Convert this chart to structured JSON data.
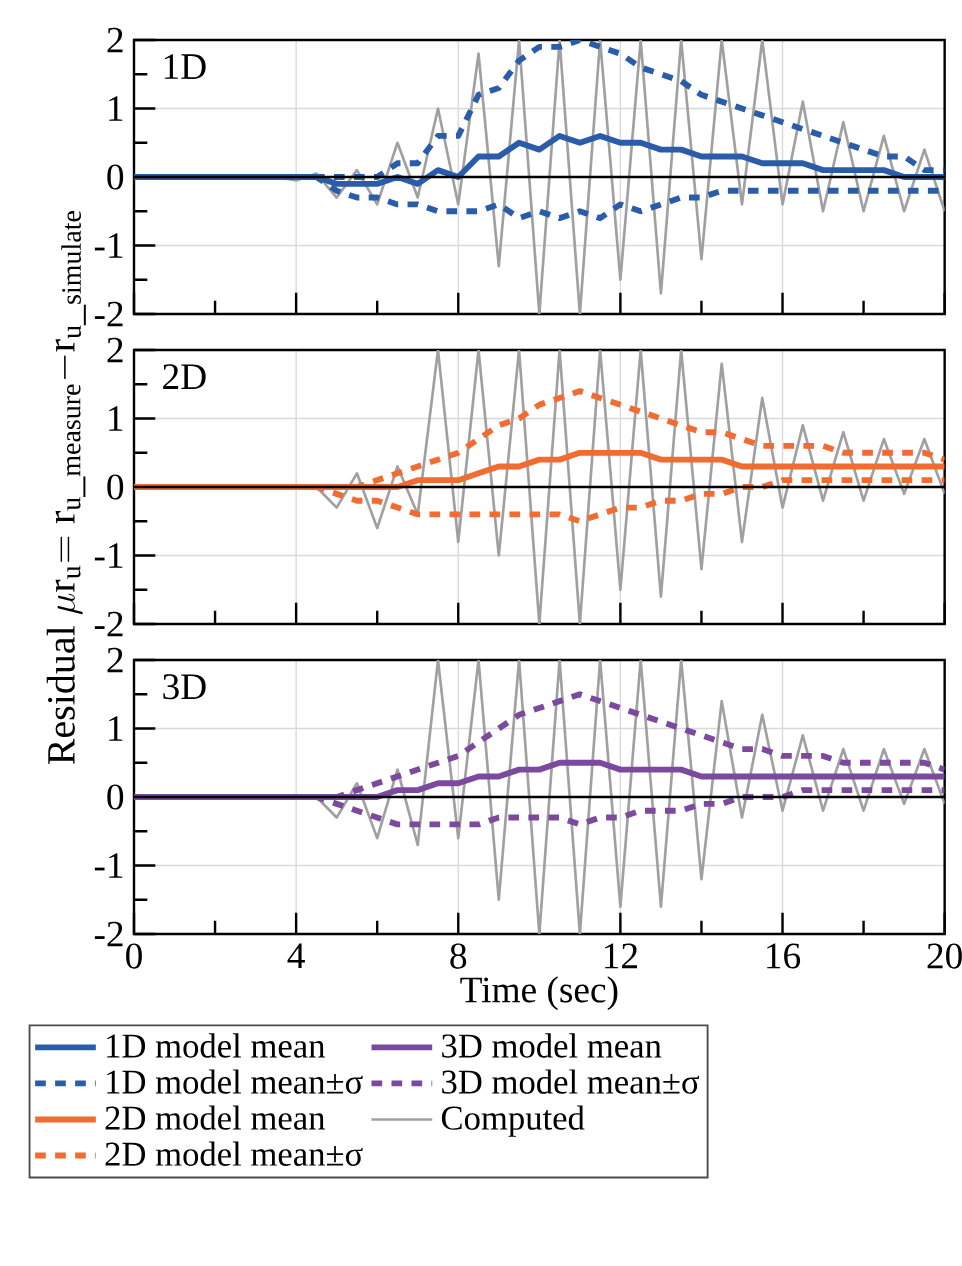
{
  "chart_data": [
    {
      "type": "line",
      "x": [
        0,
        0.5,
        1,
        1.5,
        2,
        2.5,
        3,
        3.5,
        4,
        4.5,
        5,
        5.5,
        6,
        6.5,
        7,
        7.5,
        8,
        8.5,
        9,
        9.5,
        10,
        10.5,
        11,
        11.5,
        12,
        12.5,
        13,
        13.5,
        14,
        14.5,
        15,
        15.5,
        16,
        16.5,
        17,
        17.5,
        18,
        18.5,
        19,
        19.5,
        20
      ],
      "xlim": [
        0,
        20
      ],
      "xticks": [
        0,
        {
          "value": 2,
          "label": null
        },
        4,
        {
          "value": 6,
          "label": null
        },
        8,
        {
          "value": 10,
          "label": null
        },
        12,
        {
          "value": 14,
          "label": null
        },
        16,
        {
          "value": 18,
          "label": null
        },
        20
      ],
      "ylim": [
        -2,
        2
      ],
      "yticks": [
        -2,
        {
          "value": -1.5,
          "label": null
        },
        -1,
        {
          "value": -0.5,
          "label": null
        },
        0,
        {
          "value": 0.5,
          "label": null
        },
        1,
        {
          "value": 1.5,
          "label": null
        },
        2
      ],
      "grid": true,
      "tick_labels": "y",
      "annotations": [
        "1D"
      ],
      "ref_lines": [
        {
          "axis": "y",
          "value": 0,
          "color": "#000000"
        }
      ],
      "series": [
        {
          "color": "#a0a0a0",
          "values": [
            0,
            0,
            0,
            0,
            0,
            0,
            0,
            0,
            -0.05,
            0.05,
            -0.3,
            0.1,
            -0.4,
            0.5,
            -0.3,
            1.0,
            -0.4,
            1.8,
            -1.3,
            2,
            -2,
            2,
            -2,
            2,
            -1.5,
            2,
            -1.7,
            2,
            -1.2,
            2,
            -0.4,
            2,
            -0.4,
            1.1,
            -0.5,
            0.8,
            -0.5,
            0.6,
            -0.5,
            0.4,
            -0.5
          ]
        },
        {
          "name": "1D model mean",
          "color": "#2a5caa",
          "line_style": "solid",
          "values": [
            0,
            0,
            0,
            0,
            0,
            0,
            0,
            0,
            0,
            0,
            -0.1,
            -0.1,
            -0.1,
            0,
            -0.1,
            0.1,
            0,
            0.3,
            0.3,
            0.5,
            0.4,
            0.6,
            0.5,
            0.6,
            0.5,
            0.5,
            0.4,
            0.4,
            0.3,
            0.3,
            0.3,
            0.2,
            0.2,
            0.2,
            0.1,
            0.1,
            0.1,
            0.1,
            0,
            0,
            0
          ]
        },
        {
          "name": "1D model mean±σ",
          "color": "#2a5caa",
          "line_style": "dashed",
          "values": [
            0,
            0,
            0,
            0,
            0,
            0,
            0,
            0,
            0,
            0,
            0,
            0,
            0,
            0.2,
            0.2,
            0.6,
            0.6,
            1.2,
            1.3,
            1.7,
            1.9,
            1.9,
            2,
            1.9,
            1.8,
            1.6,
            1.5,
            1.4,
            1.2,
            1.1,
            1.0,
            0.9,
            0.8,
            0.7,
            0.6,
            0.5,
            0.4,
            0.3,
            0.3,
            0.1,
            0.1
          ]
        },
        {
          "color": "#2a5caa",
          "line_style": "dashed",
          "values": [
            0,
            0,
            0,
            0,
            0,
            0,
            0,
            0,
            0,
            0,
            -0.2,
            -0.3,
            -0.3,
            -0.4,
            -0.4,
            -0.5,
            -0.5,
            -0.5,
            -0.4,
            -0.6,
            -0.5,
            -0.6,
            -0.5,
            -0.6,
            -0.4,
            -0.5,
            -0.4,
            -0.3,
            -0.3,
            -0.2,
            -0.2,
            -0.2,
            -0.2,
            -0.2,
            -0.2,
            -0.2,
            -0.2,
            -0.2,
            -0.2,
            -0.2,
            -0.2
          ]
        }
      ]
    },
    {
      "type": "line",
      "x": [
        0,
        0.5,
        1,
        1.5,
        2,
        2.5,
        3,
        3.5,
        4,
        4.5,
        5,
        5.5,
        6,
        6.5,
        7,
        7.5,
        8,
        8.5,
        9,
        9.5,
        10,
        10.5,
        11,
        11.5,
        12,
        12.5,
        13,
        13.5,
        14,
        14.5,
        15,
        15.5,
        16,
        16.5,
        17,
        17.5,
        18,
        18.5,
        19,
        19.5,
        20
      ],
      "xlim": [
        0,
        20
      ],
      "xticks": [
        0,
        {
          "value": 2,
          "label": null
        },
        4,
        {
          "value": 6,
          "label": null
        },
        8,
        {
          "value": 10,
          "label": null
        },
        12,
        {
          "value": 14,
          "label": null
        },
        16,
        {
          "value": 18,
          "label": null
        },
        20
      ],
      "ylim": [
        -2,
        2
      ],
      "yticks": [
        -2,
        {
          "value": -1.5,
          "label": null
        },
        -1,
        {
          "value": -0.5,
          "label": null
        },
        0,
        {
          "value": 0.5,
          "label": null
        },
        1,
        {
          "value": 1.5,
          "label": null
        },
        2
      ],
      "grid": true,
      "tick_labels": "y",
      "ylabel": "\\mathrm{Residual}\\ \\mu\\mathrm{r}_{\\mathrm{u}}\\mathrm{=r}_{\\mathrm{u\\_measure}}\\mathrm{-r}_{\\mathrm{u\\_simulate}}",
      "annotations": [
        "2D"
      ],
      "ref_lines": [
        {
          "axis": "y",
          "value": 0,
          "color": "#000000"
        }
      ],
      "series": [
        {
          "color": "#a0a0a0",
          "values": [
            0,
            0,
            0,
            0,
            0,
            0,
            0,
            0,
            0,
            0,
            -0.3,
            0.2,
            -0.6,
            0.3,
            -0.4,
            2,
            -0.8,
            2,
            -1,
            2,
            -2,
            2,
            -2,
            2,
            -1.5,
            2,
            -1.6,
            2,
            -1.2,
            1.8,
            -0.8,
            1.3,
            -0.3,
            0.9,
            -0.2,
            0.8,
            -0.2,
            0.7,
            -0.1,
            0.7,
            -0.1
          ]
        },
        {
          "name": "2D model mean",
          "color": "#f26b30",
          "line_style": "solid",
          "values": [
            0,
            0,
            0,
            0,
            0,
            0,
            0,
            0,
            0,
            0,
            0,
            0,
            0,
            0,
            0.1,
            0.1,
            0.1,
            0.2,
            0.3,
            0.3,
            0.4,
            0.4,
            0.5,
            0.5,
            0.5,
            0.5,
            0.4,
            0.4,
            0.4,
            0.4,
            0.3,
            0.3,
            0.3,
            0.3,
            0.3,
            0.3,
            0.3,
            0.3,
            0.3,
            0.3,
            0.3
          ]
        },
        {
          "name": "2D model mean±σ",
          "color": "#f26b30",
          "line_style": "dashed",
          "values": [
            0,
            0,
            0,
            0,
            0,
            0,
            0,
            0,
            0,
            0,
            0,
            0,
            0.1,
            0.2,
            0.3,
            0.4,
            0.5,
            0.7,
            0.9,
            1.0,
            1.2,
            1.3,
            1.4,
            1.3,
            1.2,
            1.1,
            1.0,
            0.9,
            0.8,
            0.8,
            0.7,
            0.6,
            0.6,
            0.6,
            0.6,
            0.5,
            0.5,
            0.5,
            0.5,
            0.5,
            0.4
          ]
        },
        {
          "color": "#f26b30",
          "line_style": "dashed",
          "values": [
            0,
            0,
            0,
            0,
            0,
            0,
            0,
            0,
            0,
            0,
            -0.1,
            -0.2,
            -0.2,
            -0.3,
            -0.4,
            -0.4,
            -0.4,
            -0.4,
            -0.4,
            -0.4,
            -0.4,
            -0.4,
            -0.5,
            -0.4,
            -0.3,
            -0.3,
            -0.2,
            -0.2,
            -0.1,
            -0.1,
            0,
            0,
            0.1,
            0.1,
            0.1,
            0.1,
            0.1,
            0.1,
            0.1,
            0.1,
            0.1
          ]
        }
      ]
    },
    {
      "type": "line",
      "x": [
        0,
        0.5,
        1,
        1.5,
        2,
        2.5,
        3,
        3.5,
        4,
        4.5,
        5,
        5.5,
        6,
        6.5,
        7,
        7.5,
        8,
        8.5,
        9,
        9.5,
        10,
        10.5,
        11,
        11.5,
        12,
        12.5,
        13,
        13.5,
        14,
        14.5,
        15,
        15.5,
        16,
        16.5,
        17,
        17.5,
        18,
        18.5,
        19,
        19.5,
        20
      ],
      "xlim": [
        0,
        20
      ],
      "xticks": [
        0,
        {
          "value": 2,
          "label": null
        },
        4,
        {
          "value": 6,
          "label": null
        },
        8,
        {
          "value": 10,
          "label": null
        },
        12,
        {
          "value": 14,
          "label": null
        },
        16,
        {
          "value": 18,
          "label": null
        },
        20
      ],
      "ylim": [
        -2,
        2
      ],
      "yticks": [
        -2,
        {
          "value": -1.5,
          "label": null
        },
        -1,
        {
          "value": -0.5,
          "label": null
        },
        0,
        {
          "value": 0.5,
          "label": null
        },
        1,
        {
          "value": 1.5,
          "label": null
        },
        2
      ],
      "grid": true,
      "xlabel": "Time (sec)",
      "legend": "bottom",
      "annotations": [
        "3D"
      ],
      "ref_lines": [
        {
          "axis": "y",
          "value": 0,
          "color": "#000000"
        }
      ],
      "series": [
        {
          "name": "Computed",
          "color": "#a0a0a0",
          "line_style": "solid",
          "values": [
            0,
            0,
            0,
            0,
            0,
            0,
            0,
            0,
            0,
            0,
            -0.3,
            0.2,
            -0.6,
            0.4,
            -0.7,
            2,
            -0.6,
            2,
            -1.5,
            2,
            -2,
            2,
            -2,
            2,
            -1.6,
            2,
            -1.6,
            2,
            -1.2,
            1.4,
            -0.3,
            1.2,
            -0.2,
            0.9,
            -0.2,
            0.7,
            -0.2,
            0.7,
            -0.1,
            0.7,
            -0.1
          ]
        },
        {
          "name": "3D model mean",
          "color": "#7b4a9e",
          "line_style": "solid",
          "values": [
            0,
            0,
            0,
            0,
            0,
            0,
            0,
            0,
            0,
            0,
            0,
            0,
            0,
            0.1,
            0.1,
            0.2,
            0.2,
            0.3,
            0.3,
            0.4,
            0.4,
            0.5,
            0.5,
            0.5,
            0.4,
            0.4,
            0.4,
            0.4,
            0.3,
            0.3,
            0.3,
            0.3,
            0.3,
            0.3,
            0.3,
            0.3,
            0.3,
            0.3,
            0.3,
            0.3,
            0.3
          ]
        },
        {
          "name": "3D model mean±σ",
          "color": "#7b4a9e",
          "line_style": "dashed",
          "values": [
            0,
            0,
            0,
            0,
            0,
            0,
            0,
            0,
            0,
            0,
            0,
            0.1,
            0.2,
            0.3,
            0.4,
            0.5,
            0.6,
            0.8,
            1.0,
            1.2,
            1.3,
            1.4,
            1.5,
            1.4,
            1.3,
            1.2,
            1.1,
            1.0,
            0.9,
            0.8,
            0.7,
            0.7,
            0.6,
            0.6,
            0.6,
            0.5,
            0.5,
            0.5,
            0.5,
            0.5,
            0.4
          ]
        },
        {
          "color": "#7b4a9e",
          "line_style": "dashed",
          "values": [
            0,
            0,
            0,
            0,
            0,
            0,
            0,
            0,
            0,
            0,
            -0.1,
            -0.2,
            -0.3,
            -0.4,
            -0.4,
            -0.4,
            -0.4,
            -0.4,
            -0.3,
            -0.3,
            -0.3,
            -0.3,
            -0.4,
            -0.3,
            -0.3,
            -0.2,
            -0.2,
            -0.2,
            -0.1,
            -0.1,
            0,
            0,
            0,
            0.1,
            0.1,
            0.1,
            0.1,
            0.1,
            0.1,
            0.1,
            0.1
          ]
        }
      ]
    }
  ]
}
